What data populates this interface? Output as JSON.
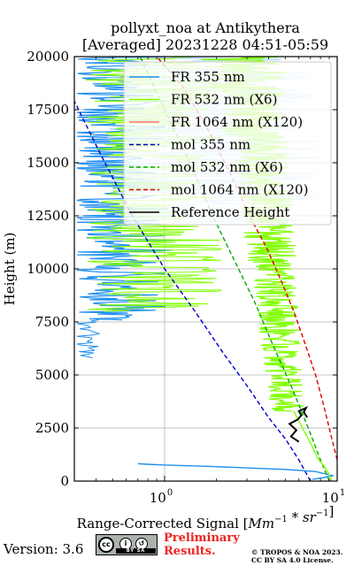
{
  "chart_data": {
    "type": "line",
    "title_line1": "pollyxt_noa at Antikythera",
    "title_line2": "[Averaged] 20231228 04:51-05:59",
    "xlabel": "Range-Corrected Signal [Mm^{-1}*sr^{-1}]",
    "ylabel": "Height (m)",
    "xscale": "log",
    "xlim": [
      0.3,
      10
    ],
    "ylim": [
      0,
      20000
    ],
    "x_major_ticks": [
      1,
      10
    ],
    "x_tick_labels": [
      "10",
      "10"
    ],
    "x_tick_label_exponents": [
      "0",
      "1"
    ],
    "y_ticks": [
      0,
      2500,
      5000,
      7500,
      10000,
      12500,
      15000,
      17500,
      20000
    ],
    "y_tick_labels": [
      "0",
      "2500",
      "5000",
      "7500",
      "10000",
      "12500",
      "15000",
      "17500",
      "20000"
    ],
    "grid": true,
    "legend_position": "upper-right",
    "legend": [
      {
        "label": "FR 355 nm",
        "color": "#1f8ff0",
        "style": "solid"
      },
      {
        "label": "FR 532 nm (X6)",
        "color": "#80ff00",
        "style": "solid"
      },
      {
        "label": "FR 1064 nm (X120)",
        "color": "#ff7070",
        "style": "solid"
      },
      {
        "label": "mol 355 nm",
        "color": "#0000cc",
        "style": "dashed"
      },
      {
        "label": "mol 532 nm (X6)",
        "color": "#00aa00",
        "style": "dashed"
      },
      {
        "label": "mol 1064 nm (X120)",
        "color": "#dd0000",
        "style": "dashed"
      },
      {
        "label": "Reference Height",
        "color": "#000000",
        "style": "solid"
      }
    ],
    "series": [
      {
        "name": "mol 355 nm",
        "color": "#0000cc",
        "style": "dashed",
        "x": [
          7.0,
          6.0,
          5.0,
          4.0,
          3.0,
          2.2,
          1.5,
          1.0,
          0.65,
          0.42,
          0.3
        ],
        "y": [
          0,
          1000,
          2000,
          3000,
          4500,
          6000,
          8000,
          10000,
          12500,
          15500,
          17900
        ]
      },
      {
        "name": "mol 532 nm (X6)",
        "color": "#00aa00",
        "style": "dashed",
        "x": [
          9.0,
          8.0,
          6.8,
          5.4,
          4.2,
          3.3,
          2.5,
          1.9,
          1.4,
          1.0,
          0.72
        ],
        "y": [
          0,
          1000,
          2500,
          4500,
          6500,
          8500,
          10500,
          12500,
          15000,
          17500,
          20000
        ]
      },
      {
        "name": "mol 1064 nm (X120)",
        "color": "#dd0000",
        "style": "dashed",
        "x": [
          10.0,
          9.3,
          8.4,
          7.5,
          6.5,
          5.6,
          4.7,
          3.9,
          3.1,
          2.4,
          1.8,
          1.3,
          0.9
        ],
        "y": [
          1000,
          2000,
          3500,
          5000,
          6500,
          8000,
          9500,
          11000,
          12500,
          14500,
          16500,
          18500,
          20000
        ]
      },
      {
        "name": "FR 355 nm",
        "color": "#1f8ff0",
        "style": "solid",
        "x": [
          7.2,
          9.5,
          7.5,
          5.0,
          3.0,
          2.0,
          1.4,
          1.0,
          0.8,
          0.7
        ],
        "y": [
          80,
          250,
          450,
          550,
          620,
          680,
          720,
          760,
          790,
          820
        ]
      },
      {
        "name": "FR 532 nm (X6)",
        "color": "#80ff00",
        "style": "solid",
        "x": [
          9.3,
          9.0,
          8.4,
          7.8,
          7.0,
          6.2,
          5.6
        ],
        "y": [
          0,
          300,
          700,
          1000,
          1800,
          2600,
          3300
        ]
      },
      {
        "name": "Reference Height",
        "color": "#000000",
        "style": "solid",
        "x": [
          6.0,
          5.4,
          5.8,
          5.3,
          5.9,
          6.2,
          6.0,
          6.6,
          6.4,
          6.7
        ],
        "y": [
          1850,
          2100,
          2400,
          2700,
          2900,
          3100,
          3300,
          3450,
          3250,
          3000
        ]
      }
    ]
  },
  "footer": {
    "version": "Version: 3.6",
    "preliminary_line1": "Preliminary",
    "preliminary_line2": "Results.",
    "copyright_line1": "© TROPOS & NOA 2023.",
    "copyright_line2": "CC BY SA 4.0 License.",
    "cc_badge_text": "BY SA"
  }
}
